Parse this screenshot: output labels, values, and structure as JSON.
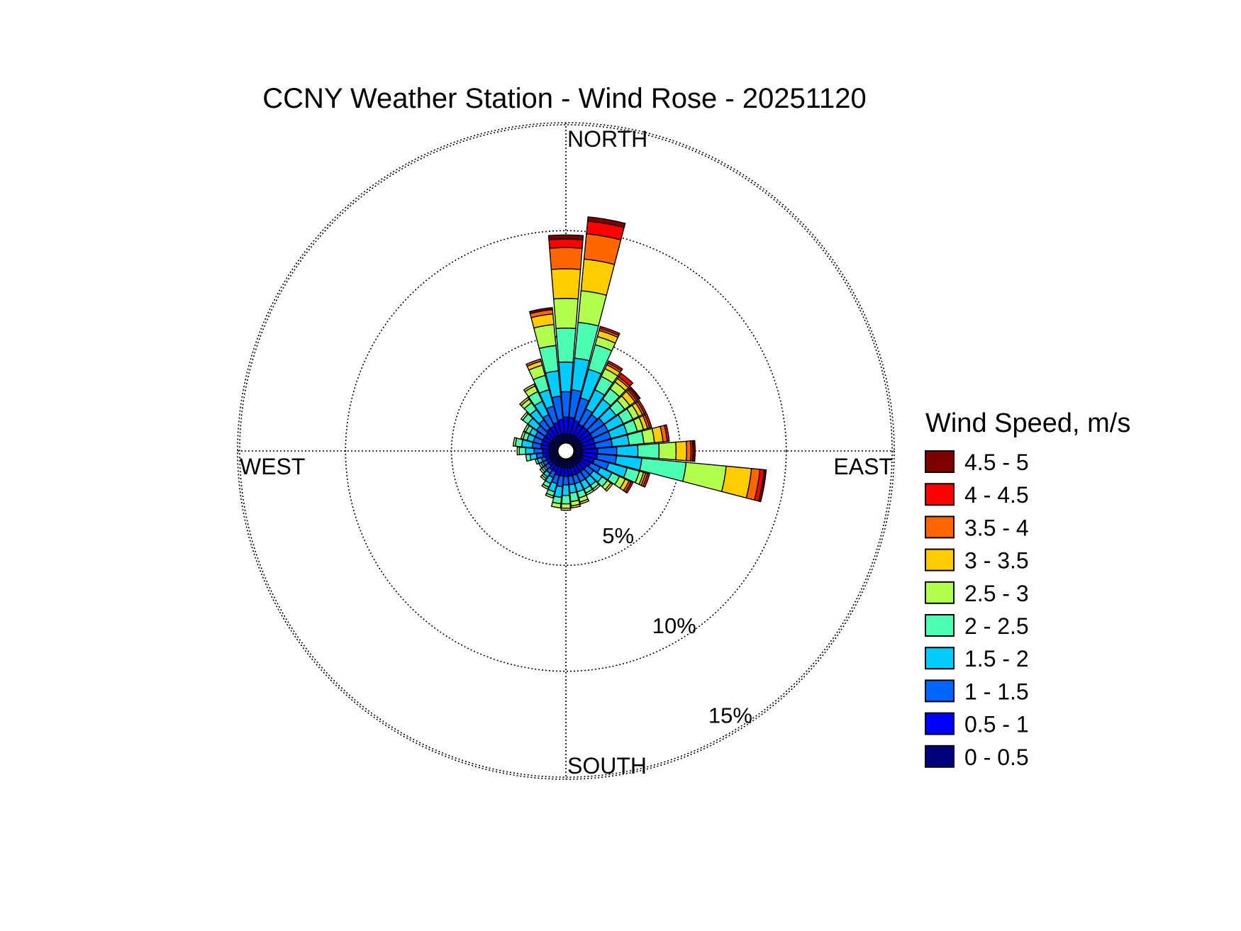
{
  "chart_data": {
    "type": "wind-rose",
    "title": "CCNY Weather Station - Wind Rose - 20251120",
    "compass_labels": {
      "north": "NORTH",
      "east": "EAST",
      "south": "SOUTH",
      "west": "WEST"
    },
    "radial_ticks": [
      {
        "value": 5,
        "label": "5%"
      },
      {
        "value": 10,
        "label": "10%"
      },
      {
        "value": 15,
        "label": "15%"
      }
    ],
    "radial_max": 15.5,
    "grid": true,
    "legend": {
      "title": "Wind Speed, m/s",
      "placement": "right",
      "bins": [
        {
          "label": "0 - 0.5",
          "color": "#000080"
        },
        {
          "label": "0.5 - 1",
          "color": "#0000ff"
        },
        {
          "label": "1 - 1.5",
          "color": "#0066ff"
        },
        {
          "label": "1.5 - 2",
          "color": "#00ccff"
        },
        {
          "label": "2 - 2.5",
          "color": "#4dffb3"
        },
        {
          "label": "2.5 - 3",
          "color": "#b3ff4d"
        },
        {
          "label": "3 - 3.5",
          "color": "#ffcc00"
        },
        {
          "label": "3.5 - 4",
          "color": "#ff6600"
        },
        {
          "label": "4 - 4.5",
          "color": "#ff0000"
        },
        {
          "label": "4.5 - 5",
          "color": "#800000"
        }
      ]
    },
    "sector_width_deg": 10,
    "sectors": [
      {
        "dir": 0,
        "cum": [
          0.4,
          1.2,
          2.4,
          3.8,
          5.4,
          6.8,
          8.2,
          9.2,
          9.6,
          9.8
        ]
      },
      {
        "dir": 10,
        "cum": [
          0.4,
          1.2,
          2.5,
          4.0,
          5.7,
          7.2,
          8.7,
          9.9,
          10.5,
          10.7
        ]
      },
      {
        "dir": 20,
        "cum": [
          0.4,
          1.1,
          2.2,
          3.6,
          4.8,
          5.2,
          5.5,
          5.6,
          5.7,
          5.7
        ]
      },
      {
        "dir": 30,
        "cum": [
          0.4,
          1.0,
          1.8,
          2.8,
          3.5,
          3.9,
          4.1,
          4.2,
          4.3,
          4.3
        ]
      },
      {
        "dir": 40,
        "cum": [
          0.4,
          1.0,
          1.7,
          2.6,
          3.2,
          3.6,
          3.8,
          3.9,
          4.1,
          4.1
        ]
      },
      {
        "dir": 50,
        "cum": [
          0.4,
          1.0,
          1.8,
          2.5,
          3.0,
          3.3,
          3.6,
          3.7,
          3.8,
          3.9
        ]
      },
      {
        "dir": 60,
        "cum": [
          0.4,
          1.0,
          1.8,
          2.6,
          3.1,
          3.4,
          3.6,
          3.7,
          3.8,
          3.8
        ]
      },
      {
        "dir": 70,
        "cum": [
          0.4,
          1.0,
          1.8,
          2.6,
          3.1,
          3.4,
          3.6,
          3.7,
          3.8,
          3.8
        ]
      },
      {
        "dir": 80,
        "cum": [
          0.4,
          1.0,
          1.8,
          2.6,
          3.3,
          3.8,
          4.2,
          4.4,
          4.5,
          4.5
        ]
      },
      {
        "dir": 90,
        "cum": [
          0.4,
          1.1,
          2.0,
          3.0,
          4.0,
          4.8,
          5.3,
          5.5,
          5.6,
          5.7
        ]
      },
      {
        "dir": 100,
        "cum": [
          0.4,
          1.1,
          2.0,
          3.2,
          5.3,
          7.2,
          8.4,
          8.8,
          9.0,
          9.1
        ]
      },
      {
        "dir": 110,
        "cum": [
          0.4,
          1.0,
          1.7,
          2.6,
          3.2,
          3.4,
          3.5,
          3.6,
          3.7,
          3.7
        ]
      },
      {
        "dir": 120,
        "cum": [
          0.4,
          0.9,
          1.4,
          2.0,
          2.4,
          2.7,
          2.9,
          3.0,
          3.1,
          3.1
        ]
      },
      {
        "dir": 130,
        "cum": [
          0.4,
          0.8,
          1.2,
          1.7,
          2.0,
          2.2,
          2.3,
          2.3,
          2.3,
          2.3
        ]
      },
      {
        "dir": 140,
        "cum": [
          0.4,
          0.8,
          1.2,
          1.6,
          1.8,
          1.9,
          1.9,
          1.9,
          1.9,
          1.9
        ]
      },
      {
        "dir": 150,
        "cum": [
          0.4,
          0.8,
          1.2,
          1.6,
          1.8,
          1.9,
          1.9,
          1.9,
          1.9,
          1.9
        ]
      },
      {
        "dir": 160,
        "cum": [
          0.4,
          0.8,
          1.2,
          1.6,
          1.9,
          2.1,
          2.2,
          2.2,
          2.2,
          2.2
        ]
      },
      {
        "dir": 170,
        "cum": [
          0.4,
          0.8,
          1.2,
          1.6,
          2.0,
          2.2,
          2.3,
          2.3,
          2.3,
          2.3
        ]
      },
      {
        "dir": 180,
        "cum": [
          0.4,
          0.8,
          1.2,
          1.7,
          2.1,
          2.3,
          2.4,
          2.4,
          2.4,
          2.4
        ]
      },
      {
        "dir": 190,
        "cum": [
          0.4,
          0.8,
          1.3,
          1.8,
          2.1,
          2.3,
          2.3,
          2.3,
          2.3,
          2.3
        ]
      },
      {
        "dir": 200,
        "cum": [
          0.4,
          0.8,
          1.2,
          1.6,
          1.8,
          1.9,
          1.9,
          1.9,
          1.9,
          1.9
        ]
      },
      {
        "dir": 210,
        "cum": [
          0.4,
          0.7,
          1.0,
          1.3,
          1.5,
          1.6,
          1.6,
          1.6,
          1.6,
          1.6
        ]
      },
      {
        "dir": 220,
        "cum": [
          0.4,
          0.7,
          0.9,
          1.1,
          1.2,
          1.3,
          1.3,
          1.3,
          1.3,
          1.3
        ]
      },
      {
        "dir": 230,
        "cum": [
          0.4,
          0.6,
          0.8,
          0.9,
          1.0,
          1.1,
          1.1,
          1.1,
          1.1,
          1.1
        ]
      },
      {
        "dir": 240,
        "cum": [
          0.4,
          0.6,
          0.8,
          0.9,
          1.0,
          1.0,
          1.0,
          1.0,
          1.0,
          1.0
        ]
      },
      {
        "dir": 250,
        "cum": [
          0.4,
          0.6,
          0.8,
          1.0,
          1.1,
          1.1,
          1.1,
          1.1,
          1.1,
          1.1
        ]
      },
      {
        "dir": 260,
        "cum": [
          0.4,
          0.7,
          1.0,
          1.3,
          1.5,
          1.5,
          1.5,
          1.5,
          1.5,
          1.5
        ]
      },
      {
        "dir": 270,
        "cum": [
          0.4,
          0.7,
          1.1,
          1.5,
          1.8,
          1.9,
          1.9,
          1.9,
          1.9,
          1.9
        ]
      },
      {
        "dir": 280,
        "cum": [
          0.4,
          0.8,
          1.2,
          1.7,
          2.0,
          2.1,
          2.1,
          2.1,
          2.1,
          2.1
        ]
      },
      {
        "dir": 290,
        "cum": [
          0.4,
          0.8,
          1.2,
          1.5,
          1.7,
          1.8,
          1.8,
          1.8,
          1.8,
          1.8
        ]
      },
      {
        "dir": 300,
        "cum": [
          0.4,
          0.8,
          1.2,
          1.5,
          1.7,
          1.8,
          1.8,
          1.8,
          1.8,
          1.8
        ]
      },
      {
        "dir": 310,
        "cum": [
          0.4,
          0.8,
          1.3,
          1.8,
          2.1,
          2.2,
          2.2,
          2.2,
          2.2,
          2.2
        ]
      },
      {
        "dir": 320,
        "cum": [
          0.4,
          0.9,
          1.4,
          2.0,
          2.4,
          2.6,
          2.7,
          2.7,
          2.7,
          2.7
        ]
      },
      {
        "dir": 330,
        "cum": [
          0.4,
          0.9,
          1.5,
          2.2,
          2.7,
          3.0,
          3.1,
          3.1,
          3.1,
          3.1
        ]
      },
      {
        "dir": 340,
        "cum": [
          0.4,
          1.0,
          1.8,
          2.6,
          3.3,
          3.8,
          4.0,
          4.1,
          4.1,
          4.1
        ]
      },
      {
        "dir": 350,
        "cum": [
          0.4,
          1.1,
          2.2,
          3.4,
          4.6,
          5.6,
          6.1,
          6.3,
          6.3,
          6.4
        ]
      }
    ]
  }
}
